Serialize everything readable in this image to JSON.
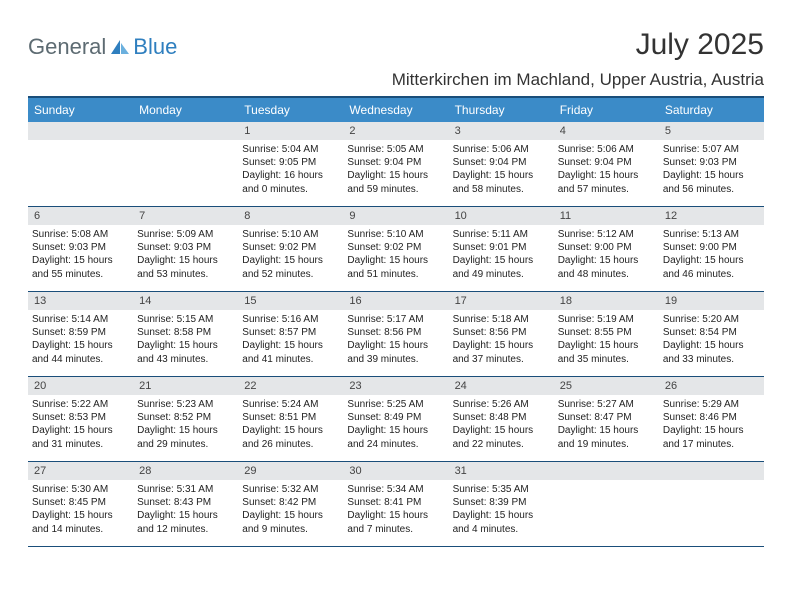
{
  "logo": {
    "text_general": "General",
    "text_blue": "Blue",
    "icon_color": "#2f7fbf"
  },
  "title": "July 2025",
  "location": "Mitterkirchen im Machland, Upper Austria, Austria",
  "colors": {
    "header_bg": "#3b8bc8",
    "header_border": "#1a4e7a",
    "daynum_bg": "#e4e6e8",
    "text": "#333333"
  },
  "day_headers": [
    "Sunday",
    "Monday",
    "Tuesday",
    "Wednesday",
    "Thursday",
    "Friday",
    "Saturday"
  ],
  "weeks": [
    [
      null,
      null,
      {
        "n": "1",
        "sunrise": "Sunrise: 5:04 AM",
        "sunset": "Sunset: 9:05 PM",
        "day1": "Daylight: 16 hours",
        "day2": "and 0 minutes."
      },
      {
        "n": "2",
        "sunrise": "Sunrise: 5:05 AM",
        "sunset": "Sunset: 9:04 PM",
        "day1": "Daylight: 15 hours",
        "day2": "and 59 minutes."
      },
      {
        "n": "3",
        "sunrise": "Sunrise: 5:06 AM",
        "sunset": "Sunset: 9:04 PM",
        "day1": "Daylight: 15 hours",
        "day2": "and 58 minutes."
      },
      {
        "n": "4",
        "sunrise": "Sunrise: 5:06 AM",
        "sunset": "Sunset: 9:04 PM",
        "day1": "Daylight: 15 hours",
        "day2": "and 57 minutes."
      },
      {
        "n": "5",
        "sunrise": "Sunrise: 5:07 AM",
        "sunset": "Sunset: 9:03 PM",
        "day1": "Daylight: 15 hours",
        "day2": "and 56 minutes."
      }
    ],
    [
      {
        "n": "6",
        "sunrise": "Sunrise: 5:08 AM",
        "sunset": "Sunset: 9:03 PM",
        "day1": "Daylight: 15 hours",
        "day2": "and 55 minutes."
      },
      {
        "n": "7",
        "sunrise": "Sunrise: 5:09 AM",
        "sunset": "Sunset: 9:03 PM",
        "day1": "Daylight: 15 hours",
        "day2": "and 53 minutes."
      },
      {
        "n": "8",
        "sunrise": "Sunrise: 5:10 AM",
        "sunset": "Sunset: 9:02 PM",
        "day1": "Daylight: 15 hours",
        "day2": "and 52 minutes."
      },
      {
        "n": "9",
        "sunrise": "Sunrise: 5:10 AM",
        "sunset": "Sunset: 9:02 PM",
        "day1": "Daylight: 15 hours",
        "day2": "and 51 minutes."
      },
      {
        "n": "10",
        "sunrise": "Sunrise: 5:11 AM",
        "sunset": "Sunset: 9:01 PM",
        "day1": "Daylight: 15 hours",
        "day2": "and 49 minutes."
      },
      {
        "n": "11",
        "sunrise": "Sunrise: 5:12 AM",
        "sunset": "Sunset: 9:00 PM",
        "day1": "Daylight: 15 hours",
        "day2": "and 48 minutes."
      },
      {
        "n": "12",
        "sunrise": "Sunrise: 5:13 AM",
        "sunset": "Sunset: 9:00 PM",
        "day1": "Daylight: 15 hours",
        "day2": "and 46 minutes."
      }
    ],
    [
      {
        "n": "13",
        "sunrise": "Sunrise: 5:14 AM",
        "sunset": "Sunset: 8:59 PM",
        "day1": "Daylight: 15 hours",
        "day2": "and 44 minutes."
      },
      {
        "n": "14",
        "sunrise": "Sunrise: 5:15 AM",
        "sunset": "Sunset: 8:58 PM",
        "day1": "Daylight: 15 hours",
        "day2": "and 43 minutes."
      },
      {
        "n": "15",
        "sunrise": "Sunrise: 5:16 AM",
        "sunset": "Sunset: 8:57 PM",
        "day1": "Daylight: 15 hours",
        "day2": "and 41 minutes."
      },
      {
        "n": "16",
        "sunrise": "Sunrise: 5:17 AM",
        "sunset": "Sunset: 8:56 PM",
        "day1": "Daylight: 15 hours",
        "day2": "and 39 minutes."
      },
      {
        "n": "17",
        "sunrise": "Sunrise: 5:18 AM",
        "sunset": "Sunset: 8:56 PM",
        "day1": "Daylight: 15 hours",
        "day2": "and 37 minutes."
      },
      {
        "n": "18",
        "sunrise": "Sunrise: 5:19 AM",
        "sunset": "Sunset: 8:55 PM",
        "day1": "Daylight: 15 hours",
        "day2": "and 35 minutes."
      },
      {
        "n": "19",
        "sunrise": "Sunrise: 5:20 AM",
        "sunset": "Sunset: 8:54 PM",
        "day1": "Daylight: 15 hours",
        "day2": "and 33 minutes."
      }
    ],
    [
      {
        "n": "20",
        "sunrise": "Sunrise: 5:22 AM",
        "sunset": "Sunset: 8:53 PM",
        "day1": "Daylight: 15 hours",
        "day2": "and 31 minutes."
      },
      {
        "n": "21",
        "sunrise": "Sunrise: 5:23 AM",
        "sunset": "Sunset: 8:52 PM",
        "day1": "Daylight: 15 hours",
        "day2": "and 29 minutes."
      },
      {
        "n": "22",
        "sunrise": "Sunrise: 5:24 AM",
        "sunset": "Sunset: 8:51 PM",
        "day1": "Daylight: 15 hours",
        "day2": "and 26 minutes."
      },
      {
        "n": "23",
        "sunrise": "Sunrise: 5:25 AM",
        "sunset": "Sunset: 8:49 PM",
        "day1": "Daylight: 15 hours",
        "day2": "and 24 minutes."
      },
      {
        "n": "24",
        "sunrise": "Sunrise: 5:26 AM",
        "sunset": "Sunset: 8:48 PM",
        "day1": "Daylight: 15 hours",
        "day2": "and 22 minutes."
      },
      {
        "n": "25",
        "sunrise": "Sunrise: 5:27 AM",
        "sunset": "Sunset: 8:47 PM",
        "day1": "Daylight: 15 hours",
        "day2": "and 19 minutes."
      },
      {
        "n": "26",
        "sunrise": "Sunrise: 5:29 AM",
        "sunset": "Sunset: 8:46 PM",
        "day1": "Daylight: 15 hours",
        "day2": "and 17 minutes."
      }
    ],
    [
      {
        "n": "27",
        "sunrise": "Sunrise: 5:30 AM",
        "sunset": "Sunset: 8:45 PM",
        "day1": "Daylight: 15 hours",
        "day2": "and 14 minutes."
      },
      {
        "n": "28",
        "sunrise": "Sunrise: 5:31 AM",
        "sunset": "Sunset: 8:43 PM",
        "day1": "Daylight: 15 hours",
        "day2": "and 12 minutes."
      },
      {
        "n": "29",
        "sunrise": "Sunrise: 5:32 AM",
        "sunset": "Sunset: 8:42 PM",
        "day1": "Daylight: 15 hours",
        "day2": "and 9 minutes."
      },
      {
        "n": "30",
        "sunrise": "Sunrise: 5:34 AM",
        "sunset": "Sunset: 8:41 PM",
        "day1": "Daylight: 15 hours",
        "day2": "and 7 minutes."
      },
      {
        "n": "31",
        "sunrise": "Sunrise: 5:35 AM",
        "sunset": "Sunset: 8:39 PM",
        "day1": "Daylight: 15 hours",
        "day2": "and 4 minutes."
      },
      null,
      null
    ]
  ]
}
